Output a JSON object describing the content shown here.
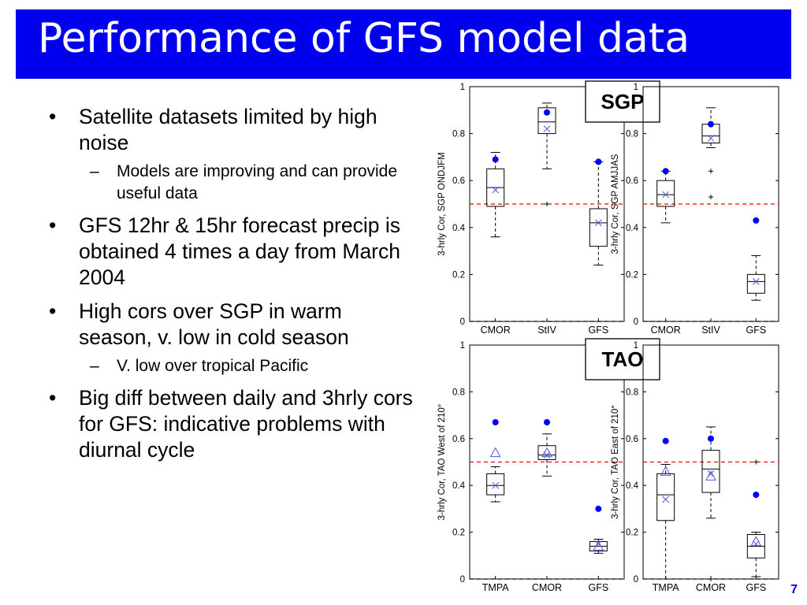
{
  "title": "Performance of GFS model data",
  "bullets": [
    {
      "text": "Satellite datasets limited by high noise",
      "sub": [
        "Models are improving and can provide useful data"
      ]
    },
    {
      "text": "GFS 12hr & 15hr forecast precip is obtained 4 times a day from March 2004",
      "sub": []
    },
    {
      "text": "High cors over SGP in warm season, v. low in cold season",
      "sub": [
        "V. low over tropical Pacific"
      ]
    },
    {
      "text": "Big diff between daily and 3hrly cors for GFS: indicative problems with diurnal cycle",
      "sub": []
    }
  ],
  "bullet_symbol": "•",
  "sub_symbol": "–",
  "page_number": "7",
  "colors": {
    "title_bg": "#0000ee",
    "title_text": "#ffffff",
    "ref_line": "#ff0000",
    "marker": "#0000ff",
    "mean_marker": "#5555dd"
  },
  "chart_data": [
    {
      "type": "boxplot",
      "region_label": "SGP",
      "ylabel": "3-hrly Cor, SGP ONDJFM",
      "ylim": [
        0,
        1
      ],
      "yticks": [
        "0",
        "0.2",
        "0.4",
        "0.6",
        "0.8",
        "1"
      ],
      "categories": [
        "CMOR",
        "StIV",
        "GFS"
      ],
      "reference_lines": [
        {
          "y": 0.5,
          "color": "red"
        },
        {
          "y": 0,
          "color": "black"
        }
      ],
      "boxes": [
        {
          "q1": 0.49,
          "median": 0.57,
          "q3": 0.65,
          "wlow": 0.36,
          "whigh": 0.72,
          "mean": 0.56,
          "marker": 0.69,
          "outliers": []
        },
        {
          "q1": 0.8,
          "median": 0.85,
          "q3": 0.91,
          "wlow": 0.65,
          "whigh": 0.93,
          "mean": 0.82,
          "marker": 0.89,
          "outliers": [
            0.5
          ]
        },
        {
          "q1": 0.32,
          "median": 0.42,
          "q3": 0.48,
          "wlow": 0.24,
          "whigh": 0.68,
          "mean": 0.42,
          "marker": 0.68,
          "outliers": []
        }
      ]
    },
    {
      "type": "boxplot",
      "region_label": "",
      "ylabel": "3-hrly Cor, SGP AMJJAS",
      "ylim": [
        0,
        1
      ],
      "yticks": [
        "0",
        "0.2",
        "0.4",
        "0.6",
        "0.8",
        "1"
      ],
      "categories": [
        "CMOR",
        "StIV",
        "GFS"
      ],
      "reference_lines": [
        {
          "y": 0.5,
          "color": "red"
        },
        {
          "y": 0,
          "color": "black"
        }
      ],
      "boxes": [
        {
          "q1": 0.49,
          "median": 0.54,
          "q3": 0.6,
          "wlow": 0.42,
          "whigh": 0.64,
          "mean": 0.54,
          "marker": 0.64,
          "outliers": []
        },
        {
          "q1": 0.76,
          "median": 0.79,
          "q3": 0.84,
          "wlow": 0.74,
          "whigh": 0.91,
          "mean": 0.78,
          "marker": 0.84,
          "outliers": [
            0.64,
            0.53
          ]
        },
        {
          "q1": 0.12,
          "median": 0.17,
          "q3": 0.2,
          "wlow": 0.09,
          "whigh": 0.28,
          "mean": 0.17,
          "marker": 0.43,
          "outliers": []
        }
      ]
    },
    {
      "type": "boxplot",
      "region_label": "TAO",
      "ylabel": "3-hrly Cor, TAO West of 210°",
      "ylim": [
        0,
        1
      ],
      "yticks": [
        "0",
        "0.2",
        "0.4",
        "0.6",
        "0.8",
        "1"
      ],
      "categories": [
        "TMPA",
        "CMOR",
        "GFS"
      ],
      "reference_lines": [
        {
          "y": 0.5,
          "color": "red"
        },
        {
          "y": 0,
          "color": "black"
        }
      ],
      "boxes": [
        {
          "q1": 0.36,
          "median": 0.4,
          "q3": 0.45,
          "wlow": 0.33,
          "whigh": 0.48,
          "mean": 0.4,
          "marker": 0.67,
          "median_marker": 0.54,
          "outliers": []
        },
        {
          "q1": 0.51,
          "median": 0.53,
          "q3": 0.57,
          "wlow": 0.44,
          "whigh": 0.62,
          "mean": 0.53,
          "marker": 0.67,
          "median_marker": 0.54,
          "outliers": []
        },
        {
          "q1": 0.12,
          "median": 0.14,
          "q3": 0.16,
          "wlow": 0.11,
          "whigh": 0.17,
          "mean": 0.15,
          "marker": 0.3,
          "median_marker": 0.14,
          "outliers": []
        }
      ]
    },
    {
      "type": "boxplot",
      "region_label": "",
      "ylabel": "3-hrly Cor, TAO East of 210°",
      "ylim": [
        0,
        1
      ],
      "yticks": [
        "0",
        "0.2",
        "0.4",
        "0.6",
        "0.8",
        "1"
      ],
      "categories": [
        "TMPA",
        "CMOR",
        "GFS"
      ],
      "reference_lines": [
        {
          "y": 0.5,
          "color": "red"
        },
        {
          "y": 0,
          "color": "black"
        }
      ],
      "boxes": [
        {
          "q1": 0.25,
          "median": 0.36,
          "q3": 0.45,
          "wlow": 0.0,
          "whigh": 0.49,
          "mean": 0.34,
          "marker": 0.59,
          "median_marker": 0.46,
          "outliers": []
        },
        {
          "q1": 0.37,
          "median": 0.47,
          "q3": 0.55,
          "wlow": 0.26,
          "whigh": 0.65,
          "mean": 0.45,
          "marker": 0.6,
          "median_marker": 0.44,
          "outliers": [
            0.0
          ]
        },
        {
          "q1": 0.09,
          "median": 0.14,
          "q3": 0.19,
          "wlow": 0.01,
          "whigh": 0.2,
          "mean": 0.15,
          "marker": 0.36,
          "median_marker": 0.16,
          "outliers": [
            0.5
          ]
        }
      ]
    }
  ]
}
